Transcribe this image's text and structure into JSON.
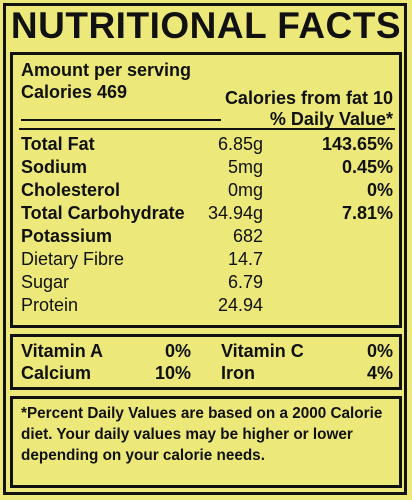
{
  "title": "NUTRITIONAL FACTS",
  "serving": {
    "amount_per_serving": "Amount per serving",
    "calories": "Calories 469",
    "calories_from_fat": "Calories from fat 10",
    "daily_value_header": "% Daily Value*"
  },
  "nutrients": [
    {
      "name": "Total Fat",
      "amount": "6.85g",
      "dv": "143.65%"
    },
    {
      "name": "Sodium",
      "amount": "5mg",
      "dv": "0.45%"
    },
    {
      "name": "Cholesterol",
      "amount": "0mg",
      "dv": "0%"
    },
    {
      "name": "Total Carbohydrate",
      "amount": "34.94g",
      "dv": "7.81%"
    },
    {
      "name": "Potassium",
      "amount": "682",
      "dv": ""
    },
    {
      "name": "Dietary Fibre",
      "amount": "14.7",
      "dv": ""
    },
    {
      "name": "Sugar",
      "amount": "6.79",
      "dv": ""
    },
    {
      "name": "Protein",
      "amount": "24.94",
      "dv": ""
    }
  ],
  "vitamins": [
    {
      "name": "Vitamin A",
      "dv": "0%"
    },
    {
      "name": "Vitamin C",
      "dv": "0%"
    },
    {
      "name": "Calcium",
      "dv": "10%"
    },
    {
      "name": "Iron",
      "dv": "4%"
    }
  ],
  "footnote": "*Percent Daily Values are based on a 2000 Calorie diet. Your daily values may be higher or lower depending on your calorie needs.",
  "colors": {
    "background": "#ece97a",
    "text": "#111111"
  }
}
